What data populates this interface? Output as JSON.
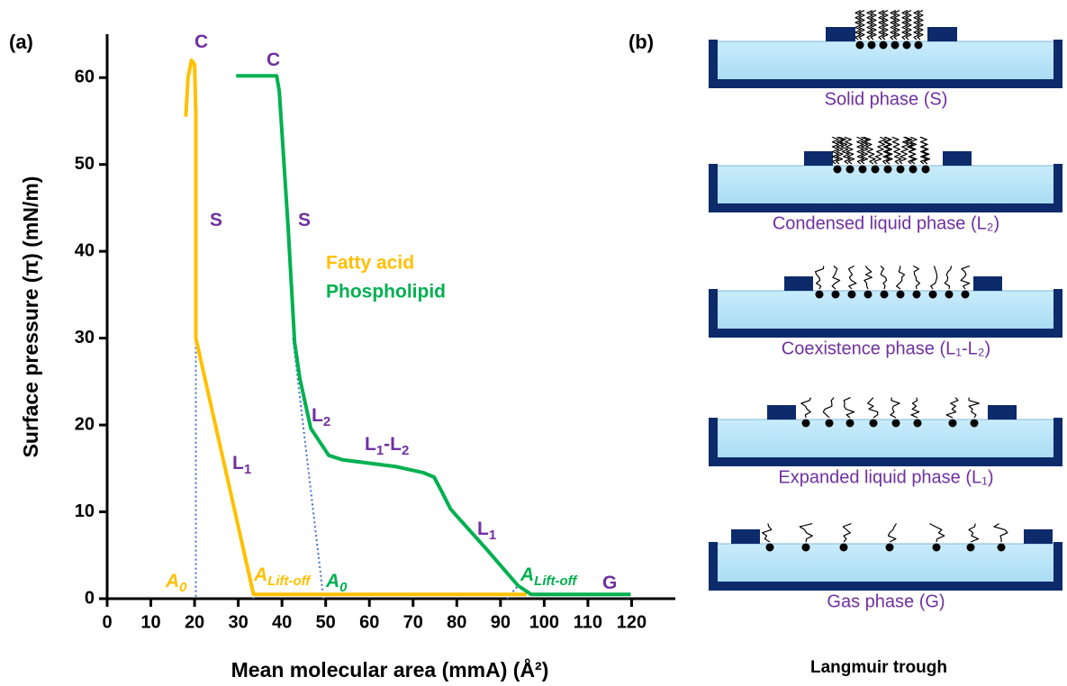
{
  "chart_data": {
    "type": "line",
    "panel_label": "(a)",
    "xlabel": "Mean molecular area (mmA) (Å²)",
    "ylabel": "Surface pressure (π) (mN/m)",
    "xlim": [
      0,
      130
    ],
    "ylim": [
      0,
      65
    ],
    "xticks": [
      0,
      10,
      20,
      30,
      40,
      50,
      60,
      70,
      80,
      90,
      100,
      110,
      120
    ],
    "yticks": [
      0,
      10,
      20,
      30,
      40,
      50,
      60
    ],
    "series": [
      {
        "name": "Fatty acid",
        "color": "#ffc000",
        "x": [
          18,
          18.5,
          19.3,
          20,
          20.3,
          20.3,
          33.5,
          96
        ],
        "values": [
          55.5,
          60,
          62,
          61.5,
          56,
          30,
          0.5,
          0.5
        ]
      },
      {
        "name": "Phospholipid",
        "color": "#00b050",
        "x": [
          29.5,
          38.8,
          39.4,
          40.4,
          41.4,
          42.9,
          44.1,
          46.6,
          50.7,
          53.8,
          66.2,
          72.4,
          74.8,
          76.5,
          78.6,
          86.8,
          94,
          97,
          119.8
        ],
        "values": [
          60.2,
          60.2,
          58.4,
          50.6,
          42.9,
          29.5,
          25.3,
          19.6,
          16.5,
          16,
          15.2,
          14.5,
          14,
          12.4,
          10.3,
          5.7,
          1.5,
          0.5,
          0.5
        ]
      }
    ],
    "guide_lines": {
      "color": "#4472c4",
      "lines": [
        {
          "x": [
            20.3,
            20.3
          ],
          "values": [
            30,
            0
          ]
        },
        {
          "x": [
            20.3,
            33.5
          ],
          "values": [
            30,
            0
          ]
        },
        {
          "x": [
            42.5,
            49.5
          ],
          "values": [
            30,
            0
          ]
        },
        {
          "x": [
            91.5,
            94
          ],
          "values": [
            0,
            1.5
          ]
        }
      ]
    },
    "annotations": [
      {
        "color": "#7030a0",
        "parts": [
          {
            "text": "C"
          }
        ]
      },
      {
        "color": "#7030a0",
        "parts": [
          {
            "text": "C"
          }
        ]
      },
      {
        "color": "#7030a0",
        "parts": [
          {
            "text": "S"
          }
        ]
      },
      {
        "color": "#7030a0",
        "parts": [
          {
            "text": "S"
          }
        ]
      },
      {
        "color": "#7030a0",
        "parts": [
          {
            "text": "L"
          },
          {
            "text": "1",
            "sub": true
          }
        ]
      },
      {
        "color": "#7030a0",
        "parts": [
          {
            "text": "L"
          },
          {
            "text": "2",
            "sub": true
          }
        ]
      },
      {
        "color": "#7030a0",
        "parts": [
          {
            "text": "L"
          },
          {
            "text": "1",
            "sub": true
          },
          {
            "text": "-L"
          },
          {
            "text": "2",
            "sub": true
          }
        ]
      },
      {
        "color": "#7030a0",
        "parts": [
          {
            "text": "L"
          },
          {
            "text": "1",
            "sub": true
          }
        ]
      },
      {
        "color": "#7030a0",
        "parts": [
          {
            "text": "G"
          }
        ]
      },
      {
        "color": "#ffc000",
        "italic": true,
        "parts": [
          {
            "text": "A"
          },
          {
            "text": "0",
            "sub": true
          }
        ]
      },
      {
        "color": "#ffc000",
        "italic": true,
        "parts": [
          {
            "text": "A"
          },
          {
            "text": "Lift-off",
            "sub": true
          }
        ]
      },
      {
        "color": "#00b050",
        "italic": true,
        "parts": [
          {
            "text": "A"
          },
          {
            "text": "0",
            "sub": true
          }
        ]
      },
      {
        "color": "#00b050",
        "italic": true,
        "parts": [
          {
            "text": "A"
          },
          {
            "text": "Lift-off",
            "sub": true
          }
        ]
      }
    ]
  },
  "panel_b": {
    "label": "(b)",
    "title": "Langmuir trough",
    "phases": [
      "Solid phase (S)",
      "Condensed liquid phase (L₂)",
      "Coexistence phase (L₁-L₂)",
      "Expanded liquid phase (L₁)",
      "Gas phase (G)"
    ]
  }
}
